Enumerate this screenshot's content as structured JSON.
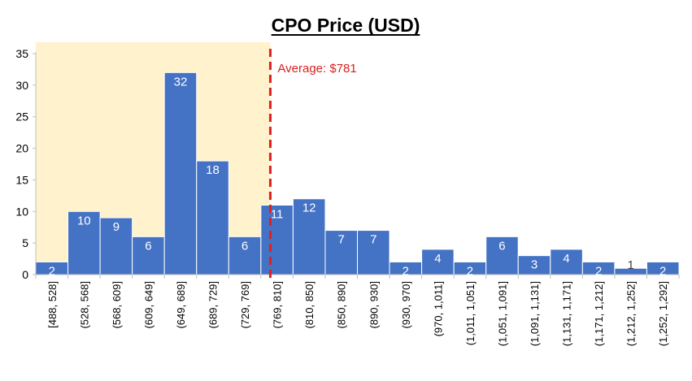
{
  "chart_data": {
    "type": "bar",
    "title": "CPO Price (USD)",
    "xlabel": "",
    "ylabel": "",
    "ylim": [
      0,
      35
    ],
    "yticks": [
      0,
      5,
      10,
      15,
      20,
      25,
      30,
      35
    ],
    "categories": [
      "[488, 528]",
      "(528, 568]",
      "(568, 609]",
      "(609, 649]",
      "(649, 689]",
      "(689, 729]",
      "(729, 769]",
      "(769, 810]",
      "(810, 850]",
      "(850, 890]",
      "(890, 930]",
      "(930, 970]",
      "(970, 1,011]",
      "(1,011, 1,051]",
      "(1,051, 1,091]",
      "(1,091, 1,131]",
      "(1,131, 1,171]",
      "(1,171, 1,212]",
      "(1,212, 1,252]",
      "(1,252, 1,292]"
    ],
    "values": [
      2,
      10,
      9,
      6,
      32,
      18,
      6,
      11,
      12,
      7,
      7,
      2,
      4,
      2,
      6,
      3,
      4,
      2,
      1,
      2
    ],
    "data_labels": [
      "2",
      "10",
      "9",
      "6",
      "32",
      "18",
      "6",
      "11",
      "12",
      "7",
      "7",
      "2",
      "4",
      "2",
      "6",
      "3",
      "4",
      "2",
      "1",
      "2"
    ],
    "average": {
      "label": "Average: $781",
      "value": 781
    },
    "highlight_region": {
      "from_category": 0,
      "to_value": 781
    },
    "colors": {
      "bar": "#4472c4",
      "bar_edge": "#ffffff",
      "highlight": "#fff2cc",
      "average_line": "#e0201f",
      "label_inside": "#ffffff",
      "label_outside": "#404040"
    },
    "grid": false,
    "legend": "none"
  }
}
